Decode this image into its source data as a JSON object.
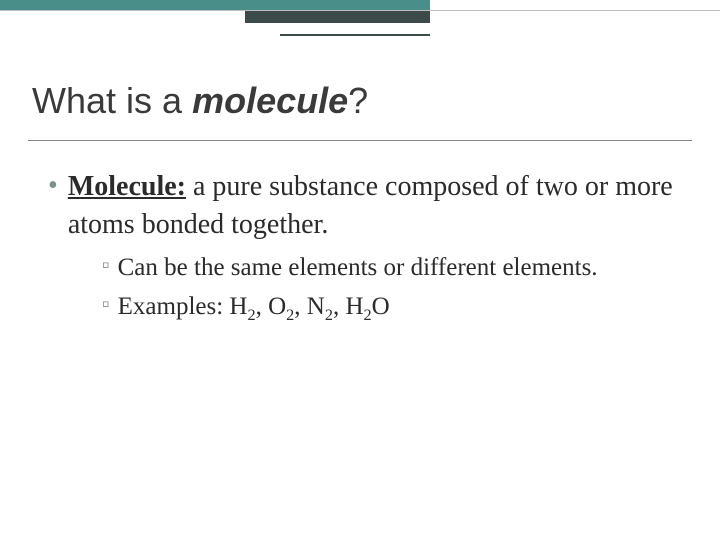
{
  "colors": {
    "teal": "#4a8e8a",
    "dark": "#3d4a4a",
    "line_gray": "#bfbfbf",
    "title_text": "#3a3a3a",
    "bullet_mark": "#7a918c",
    "sub_mark": "#8a8a8a",
    "body_text": "#2b2b2b",
    "underline": "#888888"
  },
  "title": {
    "prefix": "What is a ",
    "emph": "molecule",
    "suffix": "?"
  },
  "bullet": {
    "term": "Molecule:",
    "definition": " a pure substance composed of two or more atoms bonded together."
  },
  "sub": [
    {
      "text": "Can be the same elements or different elements."
    },
    {
      "prefix": "Examples: ",
      "formulas": [
        "H₂",
        "O₂",
        "N₂",
        "H₂O"
      ]
    }
  ]
}
